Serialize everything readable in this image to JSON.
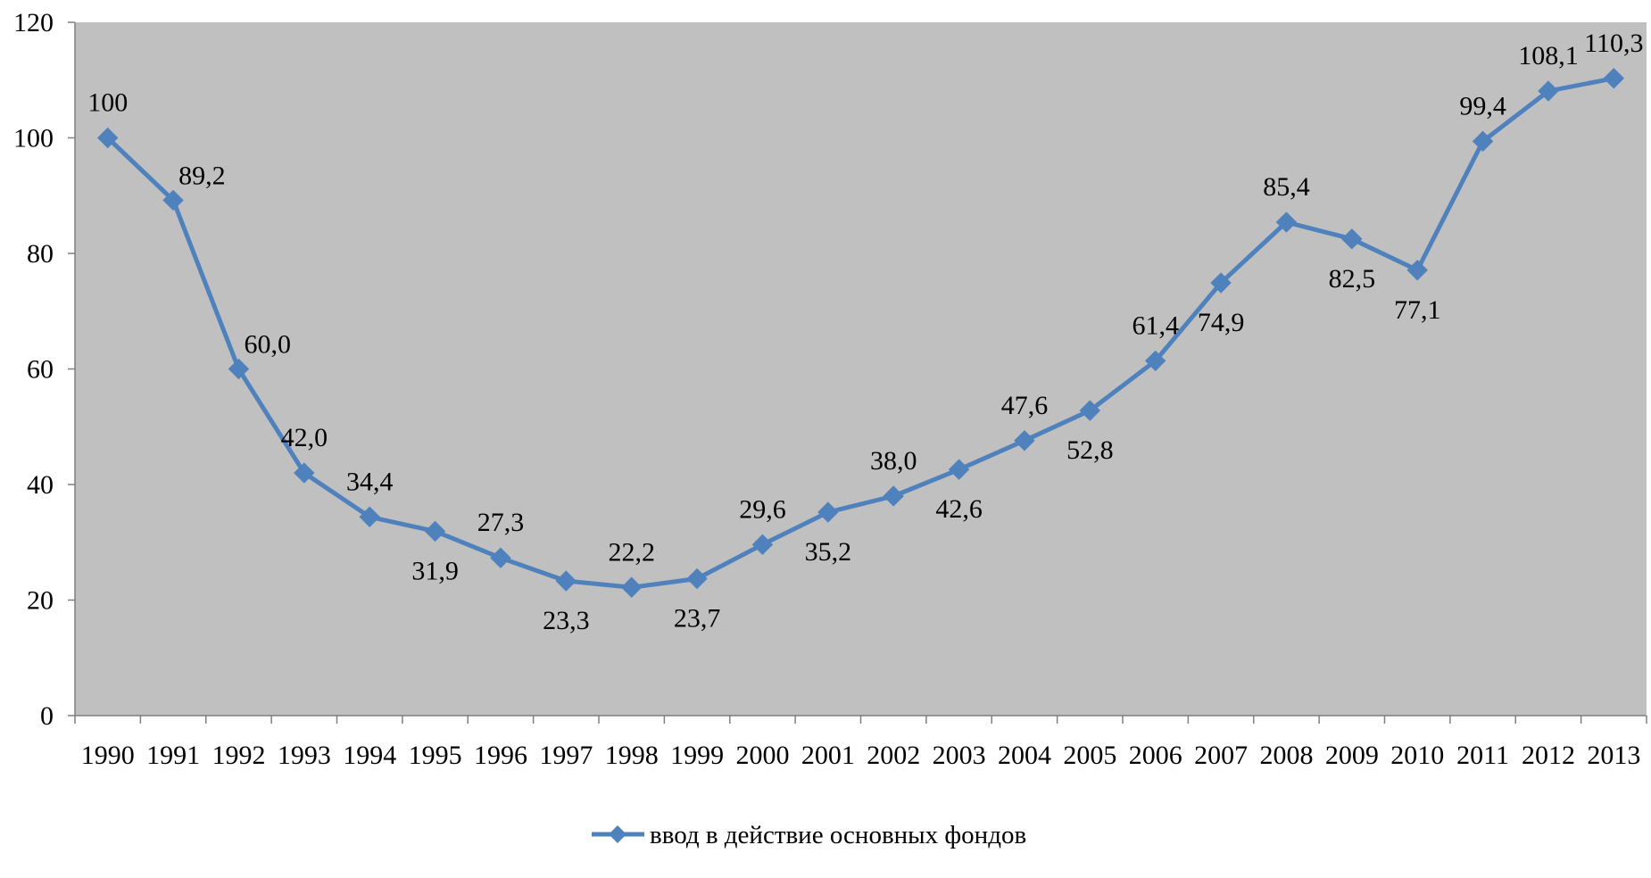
{
  "chart_data": {
    "type": "line",
    "title": "",
    "xlabel": "",
    "ylabel": "",
    "x": [
      "1990",
      "1991",
      "1992",
      "1993",
      "1994",
      "1995",
      "1996",
      "1997",
      "1998",
      "1999",
      "2000",
      "2001",
      "2002",
      "2003",
      "2004",
      "2005",
      "2006",
      "2007",
      "2008",
      "2009",
      "2010",
      "2011",
      "2012",
      "2013"
    ],
    "series": [
      {
        "name": "ввод в действие основных фондов",
        "values": [
          100,
          89.2,
          60.0,
          42.0,
          34.4,
          31.9,
          27.3,
          23.3,
          22.2,
          23.7,
          29.6,
          35.2,
          38.0,
          42.6,
          47.6,
          52.8,
          61.4,
          74.9,
          85.4,
          82.5,
          77.1,
          99.4,
          108.1,
          110.3
        ],
        "labels": [
          "100",
          "89,2",
          "60,0",
          "42,0",
          "34,4",
          "31,9",
          "27,3",
          "23,3",
          "22,2",
          "23,7",
          "29,6",
          "35,2",
          "38,0",
          "42,6",
          "47,6",
          "52,8",
          "61,4",
          "74,9",
          "85,4",
          "82,5",
          "77,1",
          "99,4",
          "108,1",
          "110,3"
        ],
        "label_positions": [
          "above",
          "above-right",
          "above-right",
          "above",
          "above",
          "below",
          "above",
          "below",
          "above",
          "below",
          "above",
          "below",
          "above",
          "below",
          "above",
          "below",
          "above",
          "below",
          "above",
          "below",
          "below",
          "above",
          "above",
          "above"
        ],
        "marker": "diamond",
        "color": "#4f81bd"
      }
    ],
    "ylim": [
      0,
      120
    ],
    "yticks": [
      0,
      20,
      40,
      60,
      80,
      100,
      120
    ],
    "grid": false,
    "plot_background": "#c0c0c0",
    "legend": {
      "position": "bottom-center"
    }
  }
}
